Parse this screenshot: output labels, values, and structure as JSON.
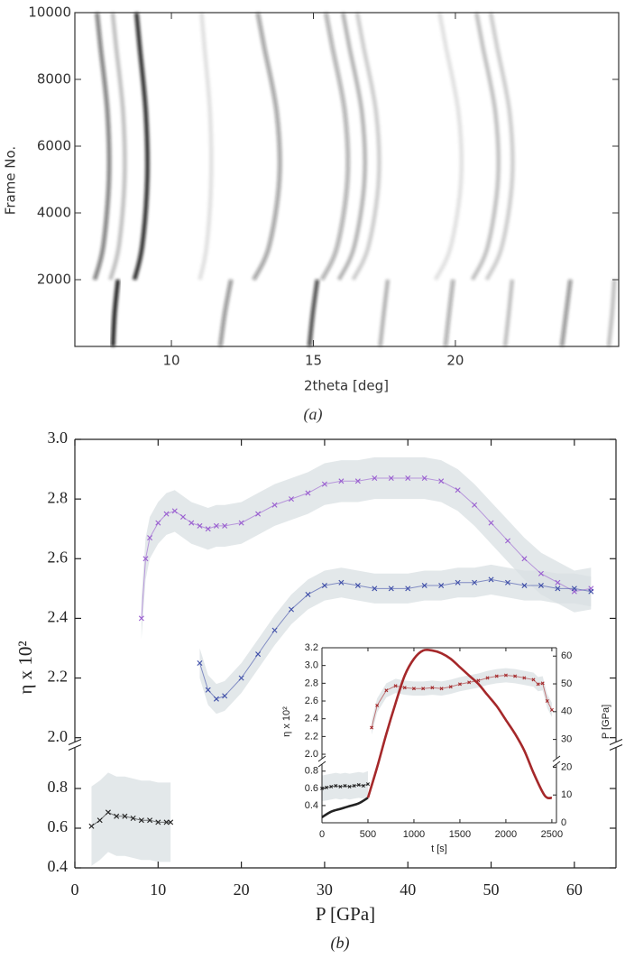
{
  "chart_data": [
    {
      "type": "waterfall",
      "panel_label": "(a)",
      "x_label": "2theta [deg]",
      "y_label": "Frame No.",
      "xlim": [
        6.6,
        25.75
      ],
      "ylim": [
        0,
        10000
      ],
      "xticks": [
        10,
        15,
        20
      ],
      "yticks": [
        2000,
        4000,
        6000,
        8000,
        10000
      ],
      "traces": [
        {
          "x": [
            7.3,
            7.6,
            7.8,
            7.75,
            7.5,
            7.38
          ],
          "frame": [
            2000,
            3000,
            5000,
            7000,
            9000,
            10000
          ],
          "intensity": 0.55
        },
        {
          "x": [
            7.85,
            8.15,
            8.35,
            8.3,
            8.05,
            7.93
          ],
          "frame": [
            2000,
            3000,
            5000,
            7000,
            9000,
            10000
          ],
          "intensity": 0.25
        },
        {
          "x": [
            8.7,
            8.97,
            9.15,
            9.1,
            8.88,
            8.77
          ],
          "frame": [
            2000,
            3000,
            5000,
            7000,
            9000,
            10000
          ],
          "intensity": 0.9
        },
        {
          "x": [
            11.0,
            11.24,
            11.4,
            11.36,
            11.16,
            11.06
          ],
          "frame": [
            2000,
            3000,
            5000,
            7000,
            9000,
            10000
          ],
          "intensity": 0.12
        },
        {
          "x": [
            12.9,
            13.44,
            13.8,
            13.71,
            13.26,
            13.04
          ],
          "frame": [
            2000,
            3000,
            5000,
            7000,
            9000,
            10000
          ],
          "intensity": 0.4
        },
        {
          "x": [
            15.3,
            15.84,
            16.2,
            16.11,
            15.66,
            15.44
          ],
          "frame": [
            2000,
            3000,
            5000,
            7000,
            9000,
            10000
          ],
          "intensity": 0.35
        },
        {
          "x": [
            15.9,
            16.44,
            16.8,
            16.71,
            16.26,
            16.04
          ],
          "frame": [
            2000,
            3000,
            5000,
            7000,
            9000,
            10000
          ],
          "intensity": 0.3
        },
        {
          "x": [
            16.4,
            16.94,
            17.3,
            17.21,
            16.76,
            16.54
          ],
          "frame": [
            2000,
            3000,
            5000,
            7000,
            9000,
            10000
          ],
          "intensity": 0.2
        },
        {
          "x": [
            19.3,
            19.84,
            20.2,
            20.11,
            19.66,
            19.44
          ],
          "frame": [
            2000,
            3000,
            5000,
            7000,
            9000,
            10000
          ],
          "intensity": 0.12
        },
        {
          "x": [
            20.6,
            21.14,
            21.5,
            21.41,
            20.96,
            20.74
          ],
          "frame": [
            2000,
            3000,
            5000,
            7000,
            9000,
            10000
          ],
          "intensity": 0.25
        },
        {
          "x": [
            21.1,
            21.64,
            22.0,
            21.91,
            21.46,
            21.24
          ],
          "frame": [
            2000,
            3000,
            5000,
            7000,
            9000,
            10000
          ],
          "intensity": 0.2
        },
        {
          "x": [
            7.94,
            8.0,
            8.12
          ],
          "frame": [
            0,
            1000,
            2000
          ],
          "intensity": 0.95
        },
        {
          "x": [
            11.72,
            11.88,
            12.1
          ],
          "frame": [
            0,
            1000,
            2000
          ],
          "intensity": 0.45
        },
        {
          "x": [
            14.86,
            14.98,
            15.14
          ],
          "frame": [
            0,
            1000,
            2000
          ],
          "intensity": 0.75
        },
        {
          "x": [
            17.35,
            17.48,
            17.62
          ],
          "frame": [
            0,
            1000,
            2000
          ],
          "intensity": 0.3
        },
        {
          "x": [
            19.65,
            19.78,
            19.92
          ],
          "frame": [
            0,
            1000,
            2000
          ],
          "intensity": 0.35
        },
        {
          "x": [
            21.75,
            21.88,
            22.0
          ],
          "frame": [
            0,
            1000,
            2000
          ],
          "intensity": 0.25
        },
        {
          "x": [
            23.75,
            23.9,
            24.05
          ],
          "frame": [
            0,
            1000,
            2000
          ],
          "intensity": 0.45
        },
        {
          "x": [
            25.4,
            25.52,
            25.6
          ],
          "frame": [
            0,
            1000,
            2000
          ],
          "intensity": 0.25
        }
      ]
    },
    {
      "type": "scatter",
      "panel_label": "(b)",
      "x_label": "P [GPa]",
      "y_label": "η x 10²",
      "xlim": [
        0,
        65
      ],
      "xticks": [
        0,
        10,
        20,
        30,
        40,
        50,
        60
      ],
      "ylim": [
        1.99,
        3.0
      ],
      "yticks": [
        {
          "value": 2,
          "label": "2.0"
        },
        2.2,
        2.4,
        2.6,
        2.8,
        {
          "value": 3,
          "label": "3.0"
        }
      ],
      "ylim_lower": [
        0.4,
        1.0
      ],
      "yticks_lower": [
        0.4,
        0.6,
        0.8
      ],
      "series": [
        {
          "color": "#9a5fd0",
          "marker": "x",
          "error": 0.07,
          "x": [
            8,
            8.5,
            9,
            10,
            11,
            12,
            13,
            14,
            15,
            16,
            17,
            18,
            20,
            22,
            24,
            26,
            28,
            30,
            32,
            34,
            36,
            38,
            40,
            42,
            44,
            46,
            48,
            50,
            52,
            54,
            56,
            58,
            60,
            62
          ],
          "values": [
            2.4,
            2.6,
            2.67,
            2.72,
            2.75,
            2.76,
            2.74,
            2.72,
            2.71,
            2.7,
            2.71,
            2.71,
            2.72,
            2.75,
            2.78,
            2.8,
            2.82,
            2.85,
            2.86,
            2.86,
            2.87,
            2.87,
            2.87,
            2.87,
            2.86,
            2.83,
            2.78,
            2.72,
            2.66,
            2.6,
            2.55,
            2.52,
            2.49,
            2.5
          ]
        },
        {
          "color": "#3f4fa8",
          "marker": "x",
          "error": 0.05,
          "x": [
            15,
            16,
            17,
            18,
            20,
            22,
            24,
            26,
            28,
            30,
            32,
            34,
            36,
            38,
            40,
            42,
            44,
            46,
            48,
            50,
            52,
            54,
            56,
            58,
            60,
            62
          ],
          "values": [
            2.25,
            2.16,
            2.13,
            2.14,
            2.2,
            2.28,
            2.36,
            2.43,
            2.48,
            2.51,
            2.52,
            2.51,
            2.5,
            2.5,
            2.5,
            2.51,
            2.51,
            2.52,
            2.52,
            2.53,
            2.52,
            2.51,
            2.51,
            2.5,
            2.5,
            2.49
          ]
        },
        {
          "color": "#222222",
          "marker": "x",
          "error": 0.2,
          "x": [
            2,
            3,
            4,
            5,
            6,
            7,
            8,
            9,
            10,
            11,
            11.5
          ],
          "values": [
            0.61,
            0.64,
            0.68,
            0.66,
            0.66,
            0.65,
            0.64,
            0.64,
            0.63,
            0.63,
            0.63
          ]
        }
      ]
    },
    {
      "type": "scatter",
      "x_label": "t [s]",
      "y_label": "η x 10²",
      "y2_label": "P [GPa]",
      "xlim": [
        0,
        2550
      ],
      "xticks": [
        0,
        500,
        1000,
        1500,
        2000,
        2500
      ],
      "ylim": [
        1.98,
        3.2
      ],
      "yticks": [
        {
          "value": 2,
          "label": "2.0"
        },
        2.2,
        2.4,
        2.6,
        2.8,
        {
          "value": 3,
          "label": "3.0"
        },
        3.2
      ],
      "ylim_lower": [
        0.2,
        0.85
      ],
      "yticks_lower": [
        0.4,
        0.6,
        0.8
      ],
      "y2lim": [
        0,
        63
      ],
      "y2ticks": [
        0,
        10,
        20,
        30,
        40,
        50,
        60
      ],
      "series": [
        {
          "color": "#222222",
          "marker": "x",
          "error": 0.15,
          "x": [
            0,
            50,
            100,
            150,
            200,
            250,
            300,
            350,
            400,
            450,
            500
          ],
          "values": [
            0.6,
            0.61,
            0.62,
            0.63,
            0.62,
            0.63,
            0.62,
            0.63,
            0.64,
            0.63,
            0.65
          ]
        },
        {
          "color": "#a5282a",
          "marker": "x",
          "error": 0.08,
          "x": [
            540,
            600,
            700,
            800,
            900,
            1000,
            1100,
            1200,
            1300,
            1400,
            1500,
            1600,
            1700,
            1800,
            1900,
            2000,
            2100,
            2200,
            2300,
            2350,
            2400,
            2450,
            2500
          ],
          "values": [
            2.3,
            2.55,
            2.72,
            2.77,
            2.75,
            2.74,
            2.74,
            2.75,
            2.74,
            2.76,
            2.79,
            2.81,
            2.83,
            2.86,
            2.88,
            2.89,
            2.88,
            2.86,
            2.84,
            2.79,
            2.8,
            2.6,
            2.5
          ]
        },
        {
          "color": "#222222",
          "axis": "y2",
          "x": [
            0,
            100,
            200,
            300,
            400,
            500
          ],
          "values": [
            2,
            4,
            5,
            6,
            7,
            9
          ]
        },
        {
          "color": "#a5282a",
          "axis": "y2",
          "x": [
            500,
            600,
            700,
            800,
            900,
            1000,
            1100,
            1200,
            1300,
            1400,
            1500,
            1600,
            1700,
            1800,
            1900,
            2000,
            2100,
            2200,
            2300,
            2400,
            2450,
            2500
          ],
          "values": [
            9,
            20,
            32,
            43,
            53,
            59,
            62,
            62,
            61,
            59,
            56,
            53,
            50,
            46,
            42,
            37,
            32,
            26,
            18,
            11,
            9,
            9
          ]
        }
      ]
    }
  ]
}
